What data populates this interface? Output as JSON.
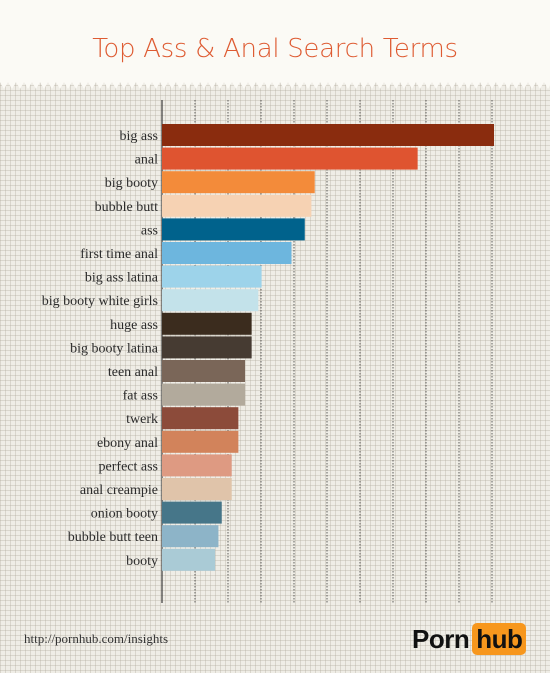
{
  "header": {
    "title": "Top Ass & Anal Search Terms"
  },
  "footer": {
    "source": "http://pornhub.com/insights",
    "logo_left": "Porn",
    "logo_right": "hub"
  },
  "chart_data": {
    "type": "bar",
    "orientation": "horizontal",
    "title": "Top Ass & Anal Search Terms",
    "xlabel": "",
    "ylabel": "",
    "xlim": [
      0,
      100
    ],
    "grid": {
      "vertical": true
    },
    "categories": [
      "big ass",
      "anal",
      "big booty",
      "bubble butt",
      "ass",
      "first time anal",
      "big ass latina",
      "big booty white girls",
      "huge ass",
      "big booty latina",
      "teen anal",
      "fat ass",
      "twerk",
      "ebony anal",
      "perfect ass",
      "anal creampie",
      "onion booty",
      "bubble butt teen",
      "booty"
    ],
    "values": [
      100,
      77,
      46,
      45,
      43,
      39,
      30,
      29,
      27,
      27,
      25,
      25,
      23,
      23,
      21,
      21,
      18,
      17,
      16
    ],
    "colors": [
      "#8a2c0e",
      "#df5430",
      "#f38b3a",
      "#f6d2b3",
      "#00628c",
      "#6db6de",
      "#9dd3ea",
      "#c3e2ea",
      "#3b2c1e",
      "#463b32",
      "#7a6658",
      "#b2aa9c",
      "#8c4b3a",
      "#d2835b",
      "#de9a82",
      "#e0c4aa",
      "#467689",
      "#8db4c8",
      "#aacbd6"
    ]
  }
}
